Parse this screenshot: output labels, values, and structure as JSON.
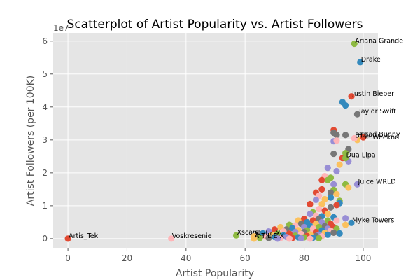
{
  "chart_data": {
    "type": "scatter",
    "title": "Scatterplot of Artist Popularity vs. Artist Followers",
    "xlabel": "Artist Popularity",
    "ylabel": "Artist Followers (per 100K)",
    "y_offset_label": "1e7",
    "xlim": [
      -5,
      105
    ],
    "ylim": [
      -0.3,
      6.25
    ],
    "xticks": [
      0,
      20,
      40,
      60,
      80,
      100
    ],
    "yticks": [
      0,
      1,
      2,
      3,
      4,
      5,
      6
    ],
    "grid": true,
    "style": "ggplot",
    "colors": [
      "#E24A33",
      "#348ABD",
      "#988ED5",
      "#777777",
      "#FBC15E",
      "#8EBA42",
      "#FFB5B8"
    ],
    "labeled_points": [
      {
        "label": "Ariana Grande",
        "x": 97,
        "y": 5.92,
        "color": "#8EBA42"
      },
      {
        "label": "Drake",
        "x": 99,
        "y": 5.36,
        "color": "#348ABD"
      },
      {
        "label": "Justin Bieber",
        "x": 96,
        "y": 4.32,
        "color": "#E24A33"
      },
      {
        "label": "Taylor Swift",
        "x": 98,
        "y": 3.78,
        "color": "#777777"
      },
      {
        "label": "Bad Bunny",
        "x": 100,
        "y": 3.08,
        "color": "#E24A33"
      },
      {
        "label": "The Weeknd",
        "x": 98,
        "y": 3.0,
        "color": "#FBC15E"
      },
      {
        "label": "BTS",
        "x": 97,
        "y": 3.05,
        "color": "#FFB5B8"
      },
      {
        "label": "Dua Lipa",
        "x": 94,
        "y": 2.45,
        "color": "#8EBA42"
      },
      {
        "label": "Juice WRLD",
        "x": 98,
        "y": 1.65,
        "color": "#988ED5"
      },
      {
        "label": "Myke Towers",
        "x": 96,
        "y": 0.48,
        "color": "#348ABD"
      },
      {
        "label": "Artis_Tek",
        "x": 0,
        "y": 0.0,
        "color": "#E24A33"
      },
      {
        "label": "Voskresenie",
        "x": 35,
        "y": 0.0,
        "color": "#FFB5B8"
      },
      {
        "label": "Xscape",
        "x": 57,
        "y": 0.1,
        "color": "#8EBA42"
      },
      {
        "label": "Static-X",
        "x": 63,
        "y": 0.07,
        "color": "#FBC15E"
      },
      {
        "label": "A T L E X",
        "x": 63,
        "y": 0.0,
        "color": "#FBC15E"
      }
    ],
    "points": [
      {
        "x": 93,
        "y": 4.15,
        "color": "#348ABD"
      },
      {
        "x": 94,
        "y": 4.05,
        "color": "#348ABD"
      },
      {
        "x": 90,
        "y": 3.3,
        "color": "#E24A33"
      },
      {
        "x": 90,
        "y": 3.22,
        "color": "#777777"
      },
      {
        "x": 91,
        "y": 3.15,
        "color": "#777777"
      },
      {
        "x": 94,
        "y": 3.15,
        "color": "#777777"
      },
      {
        "x": 90,
        "y": 2.96,
        "color": "#988ED5"
      },
      {
        "x": 91,
        "y": 2.98,
        "color": "#FFB5B8"
      },
      {
        "x": 95,
        "y": 2.72,
        "color": "#777777"
      },
      {
        "x": 90,
        "y": 2.58,
        "color": "#777777"
      },
      {
        "x": 94,
        "y": 2.6,
        "color": "#8EBA42"
      },
      {
        "x": 93,
        "y": 2.45,
        "color": "#E24A33"
      },
      {
        "x": 95,
        "y": 2.35,
        "color": "#988ED5"
      },
      {
        "x": 92,
        "y": 2.25,
        "color": "#FBC15E"
      },
      {
        "x": 88,
        "y": 2.15,
        "color": "#988ED5"
      },
      {
        "x": 91,
        "y": 2.05,
        "color": "#988ED5"
      },
      {
        "x": 87,
        "y": 1.9,
        "color": "#FFB5B8"
      },
      {
        "x": 89,
        "y": 1.85,
        "color": "#8EBA42"
      },
      {
        "x": 86,
        "y": 1.78,
        "color": "#E24A33"
      },
      {
        "x": 88,
        "y": 1.78,
        "color": "#8EBA42"
      },
      {
        "x": 90,
        "y": 1.65,
        "color": "#988ED5"
      },
      {
        "x": 94,
        "y": 1.65,
        "color": "#8EBA42"
      },
      {
        "x": 95,
        "y": 1.55,
        "color": "#FBC15E"
      },
      {
        "x": 86,
        "y": 1.5,
        "color": "#E24A33"
      },
      {
        "x": 90,
        "y": 1.48,
        "color": "#8EBA42"
      },
      {
        "x": 84,
        "y": 1.4,
        "color": "#E24A33"
      },
      {
        "x": 89,
        "y": 1.4,
        "color": "#777777"
      },
      {
        "x": 91,
        "y": 1.35,
        "color": "#FBC15E"
      },
      {
        "x": 85,
        "y": 1.3,
        "color": "#FFB5B8"
      },
      {
        "x": 89,
        "y": 1.25,
        "color": "#348ABD"
      },
      {
        "x": 87,
        "y": 1.2,
        "color": "#FBC15E"
      },
      {
        "x": 84,
        "y": 1.18,
        "color": "#988ED5"
      },
      {
        "x": 92,
        "y": 1.15,
        "color": "#8EBA42"
      },
      {
        "x": 92,
        "y": 1.08,
        "color": "#348ABD"
      },
      {
        "x": 82,
        "y": 1.05,
        "color": "#E24A33"
      },
      {
        "x": 86,
        "y": 1.05,
        "color": "#FBC15E"
      },
      {
        "x": 91,
        "y": 1.02,
        "color": "#E24A33"
      },
      {
        "x": 89,
        "y": 0.95,
        "color": "#777777"
      },
      {
        "x": 85,
        "y": 0.9,
        "color": "#FFB5B8"
      },
      {
        "x": 87,
        "y": 0.85,
        "color": "#E24A33"
      },
      {
        "x": 83,
        "y": 0.8,
        "color": "#8EBA42"
      },
      {
        "x": 82,
        "y": 0.75,
        "color": "#988ED5"
      },
      {
        "x": 88,
        "y": 0.75,
        "color": "#FBC15E"
      },
      {
        "x": 84,
        "y": 0.7,
        "color": "#FFB5B8"
      },
      {
        "x": 86,
        "y": 0.68,
        "color": "#348ABD"
      },
      {
        "x": 90,
        "y": 0.65,
        "color": "#348ABD"
      },
      {
        "x": 94,
        "y": 0.62,
        "color": "#988ED5"
      },
      {
        "x": 80,
        "y": 0.6,
        "color": "#E24A33"
      },
      {
        "x": 85,
        "y": 0.6,
        "color": "#777777"
      },
      {
        "x": 78,
        "y": 0.55,
        "color": "#FBC15E"
      },
      {
        "x": 83,
        "y": 0.55,
        "color": "#E24A33"
      },
      {
        "x": 88,
        "y": 0.55,
        "color": "#8EBA42"
      },
      {
        "x": 91,
        "y": 0.55,
        "color": "#FFB5B8"
      },
      {
        "x": 81,
        "y": 0.5,
        "color": "#348ABD"
      },
      {
        "x": 86,
        "y": 0.5,
        "color": "#988ED5"
      },
      {
        "x": 79,
        "y": 0.45,
        "color": "#777777"
      },
      {
        "x": 84,
        "y": 0.45,
        "color": "#FBC15E"
      },
      {
        "x": 89,
        "y": 0.45,
        "color": "#E24A33"
      },
      {
        "x": 94,
        "y": 0.42,
        "color": "#FBC15E"
      },
      {
        "x": 75,
        "y": 0.42,
        "color": "#8EBA42"
      },
      {
        "x": 77,
        "y": 0.4,
        "color": "#FFB5B8"
      },
      {
        "x": 82,
        "y": 0.38,
        "color": "#348ABD"
      },
      {
        "x": 87,
        "y": 0.38,
        "color": "#777777"
      },
      {
        "x": 72,
        "y": 0.35,
        "color": "#FBC15E"
      },
      {
        "x": 80,
        "y": 0.35,
        "color": "#988ED5"
      },
      {
        "x": 85,
        "y": 0.35,
        "color": "#8EBA42"
      },
      {
        "x": 90,
        "y": 0.35,
        "color": "#E24A33"
      },
      {
        "x": 76,
        "y": 0.32,
        "color": "#348ABD"
      },
      {
        "x": 83,
        "y": 0.3,
        "color": "#FFB5B8"
      },
      {
        "x": 88,
        "y": 0.3,
        "color": "#988ED5"
      },
      {
        "x": 91,
        "y": 0.3,
        "color": "#8EBA42"
      },
      {
        "x": 70,
        "y": 0.28,
        "color": "#E24A33"
      },
      {
        "x": 74,
        "y": 0.28,
        "color": "#777777"
      },
      {
        "x": 78,
        "y": 0.26,
        "color": "#FBC15E"
      },
      {
        "x": 81,
        "y": 0.25,
        "color": "#8EBA42"
      },
      {
        "x": 86,
        "y": 0.25,
        "color": "#348ABD"
      },
      {
        "x": 89,
        "y": 0.24,
        "color": "#FFB5B8"
      },
      {
        "x": 68,
        "y": 0.22,
        "color": "#988ED5"
      },
      {
        "x": 73,
        "y": 0.22,
        "color": "#FFB5B8"
      },
      {
        "x": 77,
        "y": 0.2,
        "color": "#988ED5"
      },
      {
        "x": 80,
        "y": 0.2,
        "color": "#777777"
      },
      {
        "x": 84,
        "y": 0.2,
        "color": "#E24A33"
      },
      {
        "x": 87,
        "y": 0.18,
        "color": "#FBC15E"
      },
      {
        "x": 90,
        "y": 0.18,
        "color": "#777777"
      },
      {
        "x": 92,
        "y": 0.16,
        "color": "#348ABD"
      },
      {
        "x": 66,
        "y": 0.16,
        "color": "#348ABD"
      },
      {
        "x": 71,
        "y": 0.15,
        "color": "#8EBA42"
      },
      {
        "x": 75,
        "y": 0.15,
        "color": "#E24A33"
      },
      {
        "x": 79,
        "y": 0.14,
        "color": "#FFB5B8"
      },
      {
        "x": 82,
        "y": 0.13,
        "color": "#FBC15E"
      },
      {
        "x": 85,
        "y": 0.12,
        "color": "#988ED5"
      },
      {
        "x": 88,
        "y": 0.12,
        "color": "#348ABD"
      },
      {
        "x": 64,
        "y": 0.1,
        "color": "#777777"
      },
      {
        "x": 69,
        "y": 0.1,
        "color": "#FBC15E"
      },
      {
        "x": 73,
        "y": 0.1,
        "color": "#348ABD"
      },
      {
        "x": 77,
        "y": 0.09,
        "color": "#8EBA42"
      },
      {
        "x": 81,
        "y": 0.08,
        "color": "#E24A33"
      },
      {
        "x": 84,
        "y": 0.08,
        "color": "#777777"
      },
      {
        "x": 86,
        "y": 0.07,
        "color": "#FFB5B8"
      },
      {
        "x": 67,
        "y": 0.06,
        "color": "#FFB5B8"
      },
      {
        "x": 70,
        "y": 0.05,
        "color": "#348ABD"
      },
      {
        "x": 74,
        "y": 0.05,
        "color": "#988ED5"
      },
      {
        "x": 78,
        "y": 0.04,
        "color": "#348ABD"
      },
      {
        "x": 80,
        "y": 0.04,
        "color": "#8EBA42"
      },
      {
        "x": 83,
        "y": 0.03,
        "color": "#348ABD"
      },
      {
        "x": 65,
        "y": 0.02,
        "color": "#8EBA42"
      },
      {
        "x": 68,
        "y": 0.02,
        "color": "#777777"
      },
      {
        "x": 72,
        "y": 0.02,
        "color": "#FFB5B8"
      },
      {
        "x": 76,
        "y": 0.02,
        "color": "#E24A33"
      },
      {
        "x": 79,
        "y": 0.01,
        "color": "#988ED5"
      },
      {
        "x": 85,
        "y": 0.01,
        "color": "#8EBA42"
      },
      {
        "x": 71,
        "y": 0.0,
        "color": "#988ED5"
      },
      {
        "x": 75,
        "y": 0.0,
        "color": "#FFB5B8"
      },
      {
        "x": 82,
        "y": 0.0,
        "color": "#FFB5B8"
      }
    ]
  }
}
